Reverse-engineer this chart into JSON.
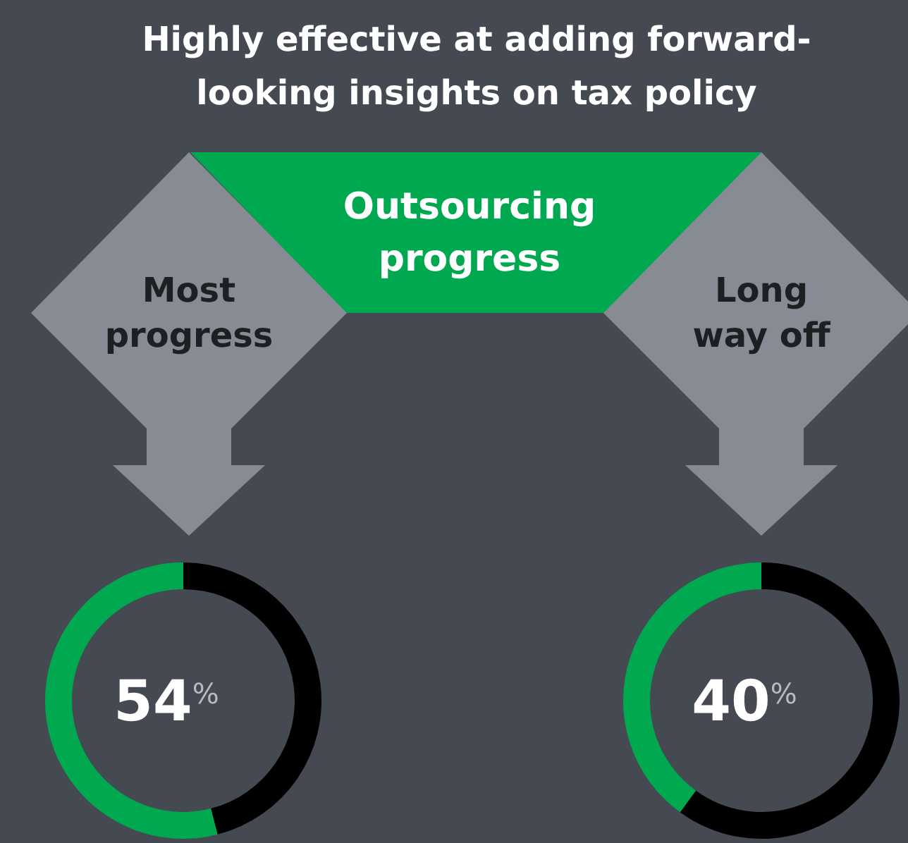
{
  "chart_data": [
    {
      "type": "other",
      "title": "Highly effective at adding forward-looking insights on tax policy",
      "annotations": [
        "Outsourcing progress"
      ]
    },
    {
      "type": "donut",
      "title": "Most progress",
      "categories": [
        null,
        null
      ],
      "values": [
        54,
        46
      ],
      "colors": [
        "#00a84f",
        "#000000"
      ],
      "value_labels": [
        "54$^{%}$",
        null
      ]
    },
    {
      "type": "donut",
      "title": "Long way off",
      "categories": [
        null,
        null
      ],
      "values": [
        40,
        60
      ],
      "colors": [
        "#00a84f",
        "#000000"
      ],
      "value_labels": [
        "40$^{%}$",
        null
      ]
    }
  ]
}
